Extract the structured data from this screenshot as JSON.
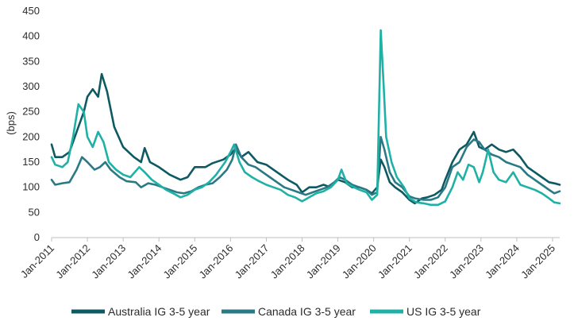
{
  "chart_data": {
    "type": "line",
    "title": "",
    "xlabel": "",
    "ylabel": "(bps)",
    "ylim": [
      0,
      450
    ],
    "yticks": [
      0,
      50,
      100,
      150,
      200,
      250,
      300,
      350,
      400,
      450
    ],
    "xlim": [
      2011.0,
      2025.2
    ],
    "xticks": [
      {
        "value": 2011,
        "label": "Jan-2011"
      },
      {
        "value": 2012,
        "label": "Jan-2012"
      },
      {
        "value": 2013,
        "label": "Jan-2013"
      },
      {
        "value": 2014,
        "label": "Jan-2014"
      },
      {
        "value": 2015,
        "label": "Jan-2015"
      },
      {
        "value": 2016,
        "label": "Jan-2016"
      },
      {
        "value": 2017,
        "label": "Jan-2017"
      },
      {
        "value": 2018,
        "label": "Jan-2018"
      },
      {
        "value": 2019,
        "label": "Jan-2019"
      },
      {
        "value": 2020,
        "label": "Jan-2020"
      },
      {
        "value": 2021,
        "label": "Jan-2021"
      },
      {
        "value": 2022,
        "label": "Jan-2022"
      },
      {
        "value": 2023,
        "label": "Jan-2023"
      },
      {
        "value": 2024,
        "label": "Jan-2024"
      },
      {
        "value": 2025,
        "label": "Jan-2025"
      }
    ],
    "grid": false,
    "legend_position": "bottom",
    "series": [
      {
        "name": "Australia IG 3-5 year",
        "color": "#0e5a63",
        "points": [
          [
            2011.0,
            185
          ],
          [
            2011.1,
            160
          ],
          [
            2011.3,
            160
          ],
          [
            2011.5,
            170
          ],
          [
            2011.7,
            210
          ],
          [
            2011.9,
            250
          ],
          [
            2012.0,
            280
          ],
          [
            2012.15,
            295
          ],
          [
            2012.3,
            280
          ],
          [
            2012.4,
            325
          ],
          [
            2012.55,
            290
          ],
          [
            2012.75,
            220
          ],
          [
            2013.0,
            180
          ],
          [
            2013.3,
            160
          ],
          [
            2013.5,
            150
          ],
          [
            2013.6,
            178
          ],
          [
            2013.75,
            150
          ],
          [
            2014.0,
            140
          ],
          [
            2014.3,
            125
          ],
          [
            2014.6,
            115
          ],
          [
            2014.8,
            120
          ],
          [
            2015.0,
            140
          ],
          [
            2015.3,
            140
          ],
          [
            2015.5,
            148
          ],
          [
            2015.8,
            155
          ],
          [
            2016.0,
            165
          ],
          [
            2016.15,
            178
          ],
          [
            2016.3,
            160
          ],
          [
            2016.5,
            170
          ],
          [
            2016.75,
            150
          ],
          [
            2017.0,
            145
          ],
          [
            2017.3,
            130
          ],
          [
            2017.6,
            115
          ],
          [
            2017.85,
            105
          ],
          [
            2018.0,
            90
          ],
          [
            2018.2,
            100
          ],
          [
            2018.4,
            100
          ],
          [
            2018.6,
            105
          ],
          [
            2018.8,
            100
          ],
          [
            2019.0,
            115
          ],
          [
            2019.2,
            110
          ],
          [
            2019.4,
            100
          ],
          [
            2019.6,
            100
          ],
          [
            2019.8,
            95
          ],
          [
            2019.95,
            88
          ],
          [
            2020.1,
            100
          ],
          [
            2020.2,
            155
          ],
          [
            2020.3,
            140
          ],
          [
            2020.45,
            110
          ],
          [
            2020.6,
            100
          ],
          [
            2020.8,
            90
          ],
          [
            2021.0,
            75
          ],
          [
            2021.15,
            68
          ],
          [
            2021.35,
            78
          ],
          [
            2021.5,
            80
          ],
          [
            2021.7,
            85
          ],
          [
            2021.9,
            95
          ],
          [
            2022.0,
            115
          ],
          [
            2022.2,
            150
          ],
          [
            2022.4,
            175
          ],
          [
            2022.6,
            185
          ],
          [
            2022.8,
            210
          ],
          [
            2022.95,
            180
          ],
          [
            2023.1,
            175
          ],
          [
            2023.3,
            185
          ],
          [
            2023.5,
            175
          ],
          [
            2023.7,
            170
          ],
          [
            2023.9,
            175
          ],
          [
            2024.1,
            160
          ],
          [
            2024.3,
            140
          ],
          [
            2024.5,
            130
          ],
          [
            2024.7,
            120
          ],
          [
            2024.9,
            110
          ],
          [
            2025.1,
            107
          ],
          [
            2025.2,
            105
          ]
        ]
      },
      {
        "name": "Canada IG 3-5 year",
        "color": "#2a7a86",
        "points": [
          [
            2011.0,
            115
          ],
          [
            2011.1,
            105
          ],
          [
            2011.3,
            108
          ],
          [
            2011.5,
            110
          ],
          [
            2011.7,
            135
          ],
          [
            2011.85,
            160
          ],
          [
            2012.0,
            150
          ],
          [
            2012.2,
            135
          ],
          [
            2012.35,
            140
          ],
          [
            2012.5,
            150
          ],
          [
            2012.65,
            135
          ],
          [
            2012.9,
            120
          ],
          [
            2013.1,
            112
          ],
          [
            2013.35,
            110
          ],
          [
            2013.5,
            100
          ],
          [
            2013.7,
            108
          ],
          [
            2013.9,
            105
          ],
          [
            2014.1,
            100
          ],
          [
            2014.3,
            95
          ],
          [
            2014.5,
            90
          ],
          [
            2014.7,
            88
          ],
          [
            2014.9,
            92
          ],
          [
            2015.1,
            100
          ],
          [
            2015.3,
            105
          ],
          [
            2015.5,
            108
          ],
          [
            2015.7,
            120
          ],
          [
            2015.9,
            135
          ],
          [
            2016.05,
            155
          ],
          [
            2016.15,
            185
          ],
          [
            2016.3,
            160
          ],
          [
            2016.5,
            145
          ],
          [
            2016.7,
            140
          ],
          [
            2016.9,
            130
          ],
          [
            2017.1,
            120
          ],
          [
            2017.3,
            110
          ],
          [
            2017.5,
            100
          ],
          [
            2017.7,
            95
          ],
          [
            2017.9,
            90
          ],
          [
            2018.1,
            85
          ],
          [
            2018.3,
            90
          ],
          [
            2018.5,
            95
          ],
          [
            2018.7,
            100
          ],
          [
            2018.9,
            110
          ],
          [
            2019.05,
            120
          ],
          [
            2019.2,
            115
          ],
          [
            2019.4,
            105
          ],
          [
            2019.6,
            100
          ],
          [
            2019.8,
            95
          ],
          [
            2019.95,
            85
          ],
          [
            2020.1,
            90
          ],
          [
            2020.2,
            200
          ],
          [
            2020.3,
            175
          ],
          [
            2020.45,
            130
          ],
          [
            2020.6,
            110
          ],
          [
            2020.8,
            100
          ],
          [
            2021.0,
            82
          ],
          [
            2021.15,
            78
          ],
          [
            2021.4,
            75
          ],
          [
            2021.6,
            75
          ],
          [
            2021.8,
            80
          ],
          [
            2022.0,
            100
          ],
          [
            2022.2,
            140
          ],
          [
            2022.4,
            150
          ],
          [
            2022.6,
            180
          ],
          [
            2022.8,
            195
          ],
          [
            2022.95,
            190
          ],
          [
            2023.1,
            175
          ],
          [
            2023.3,
            165
          ],
          [
            2023.5,
            160
          ],
          [
            2023.7,
            150
          ],
          [
            2023.9,
            145
          ],
          [
            2024.1,
            140
          ],
          [
            2024.3,
            125
          ],
          [
            2024.5,
            115
          ],
          [
            2024.7,
            105
          ],
          [
            2024.9,
            95
          ],
          [
            2025.05,
            88
          ],
          [
            2025.2,
            92
          ]
        ]
      },
      {
        "name": "US IG 3-5 year",
        "color": "#1fb1a6",
        "points": [
          [
            2011.0,
            160
          ],
          [
            2011.1,
            145
          ],
          [
            2011.3,
            140
          ],
          [
            2011.45,
            150
          ],
          [
            2011.6,
            200
          ],
          [
            2011.75,
            265
          ],
          [
            2011.9,
            250
          ],
          [
            2012.0,
            200
          ],
          [
            2012.15,
            180
          ],
          [
            2012.3,
            210
          ],
          [
            2012.45,
            190
          ],
          [
            2012.6,
            150
          ],
          [
            2012.8,
            135
          ],
          [
            2013.0,
            125
          ],
          [
            2013.2,
            120
          ],
          [
            2013.45,
            140
          ],
          [
            2013.6,
            130
          ],
          [
            2013.8,
            115
          ],
          [
            2014.0,
            105
          ],
          [
            2014.2,
            95
          ],
          [
            2014.4,
            88
          ],
          [
            2014.6,
            80
          ],
          [
            2014.8,
            85
          ],
          [
            2015.0,
            95
          ],
          [
            2015.2,
            100
          ],
          [
            2015.4,
            110
          ],
          [
            2015.6,
            125
          ],
          [
            2015.85,
            150
          ],
          [
            2016.0,
            170
          ],
          [
            2016.1,
            185
          ],
          [
            2016.25,
            150
          ],
          [
            2016.4,
            130
          ],
          [
            2016.6,
            120
          ],
          [
            2016.8,
            112
          ],
          [
            2017.0,
            105
          ],
          [
            2017.2,
            100
          ],
          [
            2017.4,
            95
          ],
          [
            2017.6,
            85
          ],
          [
            2017.8,
            80
          ],
          [
            2018.0,
            72
          ],
          [
            2018.2,
            80
          ],
          [
            2018.4,
            88
          ],
          [
            2018.6,
            92
          ],
          [
            2018.8,
            100
          ],
          [
            2019.0,
            115
          ],
          [
            2019.1,
            135
          ],
          [
            2019.25,
            108
          ],
          [
            2019.45,
            100
          ],
          [
            2019.6,
            95
          ],
          [
            2019.8,
            90
          ],
          [
            2019.95,
            75
          ],
          [
            2020.1,
            85
          ],
          [
            2020.2,
            412
          ],
          [
            2020.28,
            300
          ],
          [
            2020.35,
            200
          ],
          [
            2020.5,
            150
          ],
          [
            2020.65,
            120
          ],
          [
            2020.85,
            100
          ],
          [
            2021.0,
            78
          ],
          [
            2021.2,
            70
          ],
          [
            2021.4,
            68
          ],
          [
            2021.6,
            65
          ],
          [
            2021.8,
            65
          ],
          [
            2022.0,
            72
          ],
          [
            2022.2,
            100
          ],
          [
            2022.35,
            130
          ],
          [
            2022.5,
            115
          ],
          [
            2022.65,
            145
          ],
          [
            2022.8,
            140
          ],
          [
            2022.95,
            110
          ],
          [
            2023.05,
            130
          ],
          [
            2023.2,
            175
          ],
          [
            2023.35,
            130
          ],
          [
            2023.5,
            115
          ],
          [
            2023.7,
            110
          ],
          [
            2023.9,
            130
          ],
          [
            2024.1,
            105
          ],
          [
            2024.3,
            100
          ],
          [
            2024.5,
            95
          ],
          [
            2024.7,
            88
          ],
          [
            2024.9,
            78
          ],
          [
            2025.05,
            70
          ],
          [
            2025.2,
            68
          ]
        ]
      }
    ]
  }
}
